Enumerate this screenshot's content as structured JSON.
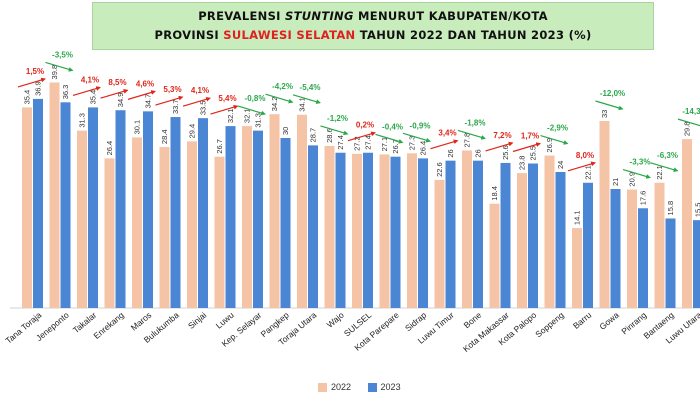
{
  "title": {
    "line1_a": "PREVALENSI ",
    "line1_b": "STUNTING",
    "line1_c": " MENURUT KABUPATEN/KOTA",
    "line2_a": "PROVINSI ",
    "line2_b": "SULAWESI SELATAN",
    "line2_c": " TAHUN 2022 DAN TAHUN 2023 (%)"
  },
  "colors": {
    "s2022": "#f5c3a6",
    "s2023": "#4a86d4",
    "increase": "#e0251b",
    "decrease": "#2aa84a"
  },
  "chart_data": {
    "type": "bar",
    "categories": [
      "Tana Toraja",
      "Jeneponto",
      "Takalar",
      "Enrekang",
      "Maros",
      "Bulukumba",
      "Sinjai",
      "Luwu",
      "Kep. Selayar",
      "Pangkep",
      "Toraja Utara",
      "Wajo",
      "SULSEL",
      "Kota Parepare",
      "Sidrap",
      "Luwu Timur",
      "Bone",
      "Kota Makassar",
      "Kota Palopo",
      "Soppeng",
      "Barru",
      "Gowa",
      "Pinrang",
      "Bantaeng",
      "Luwu Utara"
    ],
    "series": [
      {
        "name": "2022",
        "values": [
          35.4,
          39.8,
          31.3,
          26.4,
          30.1,
          28.4,
          29.4,
          26.7,
          32.1,
          34.2,
          34.1,
          28.6,
          27.2,
          27.1,
          27.3,
          22.6,
          27.8,
          18.4,
          23.8,
          26.9,
          14.1,
          33,
          20.9,
          22.1,
          29.8
        ]
      },
      {
        "name": "2023",
        "values": [
          36.9,
          36.3,
          35.4,
          34.9,
          34.7,
          33.7,
          33.5,
          32.1,
          31.3,
          30,
          28.7,
          27.4,
          27.4,
          26.7,
          26.4,
          26.0,
          26,
          25.6,
          25.5,
          24,
          22.1,
          21,
          17.6,
          15.8,
          15.5
        ]
      }
    ],
    "change_labels": [
      "1,5%",
      "-3,5%",
      "4,1%",
      "8,5%",
      "4,6%",
      "5,3%",
      "4,1%",
      "5,4%",
      "-0,8%",
      "-4,2%",
      "-5,4%",
      "-1,2%",
      "0,2%",
      "-0,4%",
      "-0,9%",
      "3,4%",
      "-1,8%",
      "7,2%",
      "1,7%",
      "-2,9%",
      "8,0%",
      "-12,0%",
      "-3,3%",
      "-6,3%",
      "-14,3%"
    ],
    "value_labels_2022": [
      "35.4",
      "39.8",
      "31.3",
      "26.4",
      "30.1",
      "28.4",
      "29.4",
      "26.7",
      "32.1",
      "34.2",
      "34.1",
      "28.6",
      "27.2",
      "27.1",
      "27.3",
      "22.6",
      "27.8",
      "18.4",
      "23.8",
      "26.9",
      "14.1",
      "33",
      "20.9",
      "22.1",
      "29.8"
    ],
    "value_labels_2023": [
      "36.9",
      "36.3",
      "35.4",
      "34.9",
      "34.7",
      "33.7",
      "33.5",
      "32.1",
      "31.3",
      "30",
      "28.7",
      "27.4",
      "27.4",
      "26.7",
      "26.4",
      "26",
      "26",
      "25.6",
      "25.5",
      "24",
      "22.1",
      "21",
      "17.6",
      "15.8",
      "15.5"
    ],
    "ylim": [
      0,
      42
    ],
    "legend": [
      "2022",
      "2023"
    ],
    "legend_position": "bottom",
    "grid": false
  }
}
